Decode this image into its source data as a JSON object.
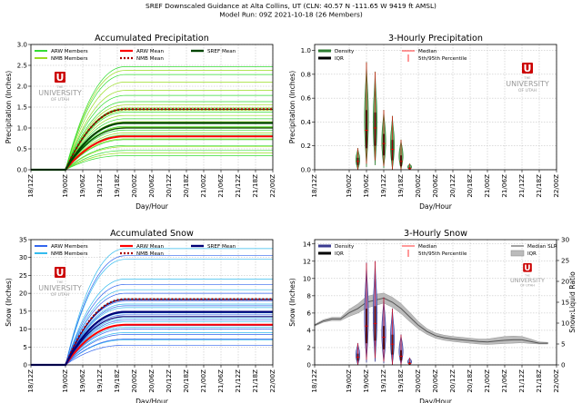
{
  "figure": {
    "title_lines": [
      "SREF Downscaled Guidance at Alta Collins, UT (CLN: 40.57 N -111.65 W 9419 ft AMSL)",
      "Model Run: 09Z 2021-10-18 (26 Members)"
    ],
    "logo": {
      "letter": "U",
      "line1": "THE",
      "line2": "UNIVERSITY",
      "line3": "OF UTAH"
    },
    "colors": {
      "arw": "#0022dd",
      "arw_light": "#3366ee",
      "nmb": "#33bbee",
      "green_arw": "#33dd33",
      "green_nmb": "#99dd22",
      "red": "#ff0000",
      "dark_red": "#aa0000",
      "dark_green": "#004400",
      "navy": "#000077",
      "density_green": "#2e7d32",
      "density_fill": "#6aaa6a",
      "density_purple": "#3a3a90",
      "density_purple_fill": "#8888cc",
      "logo": "#cc0000",
      "slr_fill": "#bbbbbb"
    }
  },
  "chart_data": [
    {
      "id": "accum_precip",
      "type": "line",
      "title": "Accumulated Precipitation",
      "xlabel": "Day/Hour",
      "ylabel": "Precipitation (Inches)",
      "x_ticks": [
        "18/12Z",
        "19/00Z",
        "19/06Z",
        "19/12Z",
        "19/18Z",
        "20/00Z",
        "20/06Z",
        "20/12Z",
        "20/18Z",
        "21/00Z",
        "21/06Z",
        "21/12Z",
        "21/18Z",
        "22/00Z"
      ],
      "x_tick_hours": [
        0,
        12,
        18,
        24,
        30,
        36,
        42,
        48,
        54,
        60,
        66,
        72,
        78,
        84
      ],
      "xlim": [
        0,
        84
      ],
      "ylim": [
        0,
        3.0
      ],
      "y_ticks": [
        "0.0",
        "0.5",
        "1.0",
        "1.5",
        "2.0",
        "2.5",
        "3.0"
      ],
      "y_tick_values": [
        0,
        0.5,
        1.0,
        1.5,
        2.0,
        2.5,
        3.0
      ],
      "grid": true,
      "legend": {
        "placement": "top",
        "entries": [
          {
            "label": "ARW Members",
            "style": "member-a"
          },
          {
            "label": "NMB Members",
            "style": "member-b"
          },
          {
            "label": "ARW Mean",
            "style": "mean-a"
          },
          {
            "label": "NMB Mean",
            "style": "mean-b"
          },
          {
            "label": "SREF Mean",
            "style": "mean-s"
          }
        ]
      },
      "onset_hour": 12,
      "end_hour": 33,
      "members_a_final": [
        2.47,
        2.28,
        1.78,
        1.63,
        1.38,
        1.22,
        1.04,
        0.95,
        0.83,
        0.72,
        0.58,
        0.46,
        0.34
      ],
      "members_b_final": [
        2.38,
        2.1,
        1.9,
        1.55,
        1.48,
        1.42,
        1.3,
        1.15,
        1.02,
        0.88,
        0.74,
        0.55,
        0.4
      ],
      "means": {
        "arw": 0.8,
        "nmb": 1.45,
        "sref": 1.12,
        "extra": [
          1.45,
          1.0
        ]
      }
    },
    {
      "id": "three_hr_precip",
      "type": "bar",
      "title": "3-Hourly Precipitation",
      "xlabel": "Day/Hour",
      "ylabel": "Precipitation (Inches)",
      "x_ticks": [
        "18/12Z",
        "19/00Z",
        "19/06Z",
        "19/12Z",
        "19/18Z",
        "20/00Z",
        "20/06Z",
        "20/12Z",
        "20/18Z",
        "21/00Z",
        "21/06Z",
        "21/12Z",
        "21/18Z",
        "22/00Z"
      ],
      "x_tick_hours": [
        0,
        12,
        18,
        24,
        30,
        36,
        42,
        48,
        54,
        60,
        66,
        72,
        78,
        84
      ],
      "xlim": [
        0,
        84
      ],
      "ylim": [
        0,
        1.05
      ],
      "y_ticks": [
        "0.0",
        "0.2",
        "0.4",
        "0.6",
        "0.8",
        "1.0"
      ],
      "y_tick_values": [
        0,
        0.2,
        0.4,
        0.6,
        0.8,
        1.0
      ],
      "grid": true,
      "legend": {
        "placement": "top",
        "entries": [
          {
            "label": "Density",
            "style": "density"
          },
          {
            "label": "IQR",
            "style": "iqr"
          },
          {
            "label": "Median",
            "style": "median"
          },
          {
            "label": "5th/95th Percentile",
            "style": "pct"
          }
        ]
      },
      "violins": [
        {
          "hour": 15,
          "p95": 0.18,
          "p75": 0.1,
          "median": 0.07,
          "p25": 0.04,
          "p5": 0.0
        },
        {
          "hour": 18,
          "p95": 0.9,
          "p75": 0.5,
          "median": 0.33,
          "p25": 0.18,
          "p5": 0.05
        },
        {
          "hour": 21,
          "p95": 0.82,
          "p75": 0.48,
          "median": 0.35,
          "p25": 0.2,
          "p5": 0.08
        },
        {
          "hour": 24,
          "p95": 0.5,
          "p75": 0.3,
          "median": 0.22,
          "p25": 0.12,
          "p5": 0.03
        },
        {
          "hour": 27,
          "p95": 0.45,
          "p75": 0.25,
          "median": 0.17,
          "p25": 0.08,
          "p5": 0.0
        },
        {
          "hour": 30,
          "p95": 0.25,
          "p75": 0.12,
          "median": 0.07,
          "p25": 0.03,
          "p5": 0.0
        },
        {
          "hour": 33,
          "p95": 0.05,
          "p75": 0.02,
          "median": 0.01,
          "p25": 0.0,
          "p5": 0.0
        }
      ]
    },
    {
      "id": "accum_snow",
      "type": "line",
      "title": "Accumulated Snow",
      "xlabel": "Day/Hour",
      "ylabel": "Snow (Inches)",
      "x_ticks": [
        "18/12Z",
        "19/00Z",
        "19/06Z",
        "19/12Z",
        "19/18Z",
        "20/00Z",
        "20/06Z",
        "20/12Z",
        "20/18Z",
        "21/00Z",
        "21/06Z",
        "21/12Z",
        "21/18Z",
        "22/00Z"
      ],
      "x_tick_hours": [
        0,
        12,
        18,
        24,
        30,
        36,
        42,
        48,
        54,
        60,
        66,
        72,
        78,
        84
      ],
      "xlim": [
        0,
        84
      ],
      "ylim": [
        0,
        35
      ],
      "y_ticks": [
        "0",
        "5",
        "10",
        "15",
        "20",
        "25",
        "30",
        "35"
      ],
      "y_tick_values": [
        0,
        5,
        10,
        15,
        20,
        25,
        30,
        35
      ],
      "grid": true,
      "legend": {
        "placement": "top",
        "entries": [
          {
            "label": "ARW Members",
            "style": "member-a"
          },
          {
            "label": "NMB Members",
            "style": "member-b"
          },
          {
            "label": "ARW Mean",
            "style": "mean-a"
          },
          {
            "label": "NMB Mean",
            "style": "mean-b"
          },
          {
            "label": "SREF Mean",
            "style": "mean-s"
          }
        ]
      },
      "onset_hour": 12,
      "end_hour": 33,
      "members_a_final": [
        30.5,
        22.5,
        20.0,
        17.8,
        16.5,
        15.0,
        14.0,
        12.5,
        11.0,
        10.0,
        8.5,
        7.2,
        5.5
      ],
      "members_b_final": [
        32.5,
        29.5,
        24.0,
        21.0,
        18.5,
        17.0,
        16.0,
        14.5,
        13.0,
        12.0,
        10.5,
        9.0,
        7.0
      ],
      "means": {
        "arw": 11.2,
        "nmb": 18.4,
        "sref": 14.8,
        "extra": [
          18.2,
          13.5
        ]
      }
    },
    {
      "id": "three_hr_snow",
      "type": "bar",
      "title": "3-Hourly Snow",
      "xlabel": "Day/Hour",
      "ylabel": "Snow (Inches)",
      "y2label": "Snow:Liquid Ratio",
      "x_ticks": [
        "18/12Z",
        "19/00Z",
        "19/06Z",
        "19/12Z",
        "19/18Z",
        "20/00Z",
        "20/06Z",
        "20/12Z",
        "20/18Z",
        "21/00Z",
        "21/06Z",
        "21/12Z",
        "21/18Z",
        "22/00Z"
      ],
      "x_tick_hours": [
        0,
        12,
        18,
        24,
        30,
        36,
        42,
        48,
        54,
        60,
        66,
        72,
        78,
        84
      ],
      "xlim": [
        0,
        84
      ],
      "ylim": [
        0,
        14.5
      ],
      "y_ticks": [
        "0",
        "2",
        "4",
        "6",
        "8",
        "10",
        "12",
        "14"
      ],
      "y_tick_values": [
        0,
        2,
        4,
        6,
        8,
        10,
        12,
        14
      ],
      "y2lim": [
        0,
        30
      ],
      "y2_ticks": [
        "0",
        "5",
        "10",
        "15",
        "20",
        "25",
        "30"
      ],
      "y2_tick_values": [
        0,
        5,
        10,
        15,
        20,
        25,
        30
      ],
      "grid": true,
      "legend": {
        "placement": "top",
        "entries": [
          {
            "label": "Density",
            "style": "density-p"
          },
          {
            "label": "IQR",
            "style": "iqr"
          },
          {
            "label": "Median",
            "style": "median"
          },
          {
            "label": "5th/95th Percentile",
            "style": "pct"
          }
        ]
      },
      "legend2": {
        "placement": "top-right",
        "entries": [
          {
            "label": "Median SLR",
            "style": "slr"
          },
          {
            "label": "IQR",
            "style": "slr-iqr"
          }
        ]
      },
      "violins": [
        {
          "hour": 15,
          "p95": 2.5,
          "p75": 1.3,
          "median": 0.9,
          "p25": 0.5,
          "p5": 0.0
        },
        {
          "hour": 18,
          "p95": 11.8,
          "p75": 6.5,
          "median": 4.5,
          "p25": 2.5,
          "p5": 0.6
        },
        {
          "hour": 21,
          "p95": 12.0,
          "p75": 6.8,
          "median": 4.8,
          "p25": 2.8,
          "p5": 0.8
        },
        {
          "hour": 24,
          "p95": 7.8,
          "p75": 4.5,
          "median": 3.2,
          "p25": 1.8,
          "p5": 0.4
        },
        {
          "hour": 27,
          "p95": 6.5,
          "p75": 3.5,
          "median": 2.4,
          "p25": 1.2,
          "p5": 0.0
        },
        {
          "hour": 30,
          "p95": 3.5,
          "p75": 1.7,
          "median": 1.0,
          "p25": 0.5,
          "p5": 0.0
        },
        {
          "hour": 33,
          "p95": 0.8,
          "p75": 0.3,
          "median": 0.15,
          "p25": 0.0,
          "p5": 0.0
        }
      ],
      "slr": {
        "hours": [
          0,
          3,
          6,
          9,
          12,
          15,
          18,
          21,
          24,
          27,
          30,
          33,
          36,
          39,
          42,
          45,
          48,
          51,
          54,
          57,
          60,
          63,
          66,
          69,
          72,
          75,
          78,
          81
        ],
        "median": [
          9.5,
          10.5,
          11.0,
          11.0,
          12.5,
          13.5,
          15.0,
          15.5,
          16.0,
          15.0,
          13.5,
          11.5,
          9.5,
          8.0,
          7.0,
          6.5,
          6.2,
          6.0,
          5.8,
          5.6,
          5.5,
          5.7,
          5.9,
          6.0,
          6.0,
          5.6,
          5.2,
          5.2
        ],
        "low": [
          9.3,
          10.2,
          10.6,
          10.6,
          11.6,
          12.4,
          13.6,
          14.2,
          14.8,
          13.8,
          12.3,
          10.4,
          8.6,
          7.3,
          6.4,
          5.9,
          5.6,
          5.4,
          5.2,
          5.0,
          4.9,
          5.0,
          5.1,
          5.2,
          5.3,
          5.1,
          5.0,
          5.0
        ],
        "high": [
          9.7,
          10.8,
          11.4,
          11.4,
          13.3,
          14.6,
          16.4,
          16.9,
          17.2,
          16.2,
          14.7,
          12.6,
          10.4,
          8.7,
          7.6,
          7.1,
          6.8,
          6.6,
          6.4,
          6.2,
          6.2,
          6.5,
          6.8,
          6.9,
          6.8,
          6.2,
          5.5,
          5.4
        ]
      }
    }
  ]
}
